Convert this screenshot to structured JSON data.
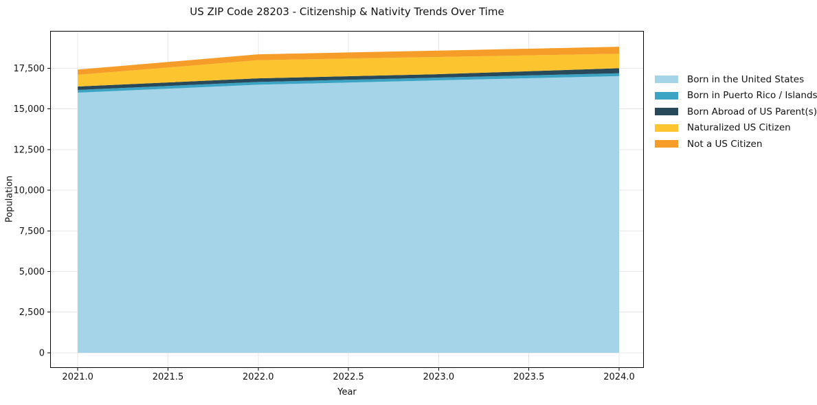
{
  "chart": {
    "title": "US ZIP Code 28203 - Citizenship & Nativity Trends Over Time",
    "xlabel": "Year",
    "ylabel": "Population"
  },
  "chart_data": {
    "type": "area",
    "stacked": true,
    "title": "US ZIP Code 28203 - Citizenship & Nativity Trends Over Time",
    "xlabel": "Year",
    "ylabel": "Population",
    "x": [
      2021,
      2022,
      2023,
      2024
    ],
    "series": [
      {
        "name": "Born in the United States",
        "color": "#a5d3e7",
        "values": [
          16000,
          16490,
          16760,
          17020
        ]
      },
      {
        "name": "Born in Puerto Rico / Islands",
        "color": "#3ba4c4",
        "values": [
          170,
          170,
          170,
          175
        ]
      },
      {
        "name": "Born Abroad of US Parent(s)",
        "color": "#27495a",
        "values": [
          210,
          225,
          210,
          310
        ]
      },
      {
        "name": "Naturalized US Citizen",
        "color": "#fcc42e",
        "values": [
          720,
          1115,
          1060,
          890
        ]
      },
      {
        "name": "Not a US Citizen",
        "color": "#f59d28",
        "values": [
          320,
          360,
          390,
          430
        ]
      }
    ],
    "stacked_totals": [
      17420,
      18360,
      18590,
      18825
    ],
    "x_ticks": [
      2021.0,
      2021.5,
      2022.0,
      2022.5,
      2023.0,
      2023.5,
      2024.0
    ],
    "x_tick_labels": [
      "2021.0",
      "2021.5",
      "2022.0",
      "2022.5",
      "2023.0",
      "2023.5",
      "2024.0"
    ],
    "y_ticks": [
      0,
      2500,
      5000,
      7500,
      10000,
      12500,
      15000,
      17500
    ],
    "y_tick_labels": [
      "0",
      "2,500",
      "5,000",
      "7,500",
      "10,000",
      "12,500",
      "15,000",
      "17,500"
    ],
    "xlim": [
      2020.847,
      2024.137
    ],
    "ylim": [
      -931,
      19802
    ],
    "grid": true,
    "grid_color": "#e7e7e7",
    "spine_color": "#000000",
    "legend_position": "right-outside"
  }
}
